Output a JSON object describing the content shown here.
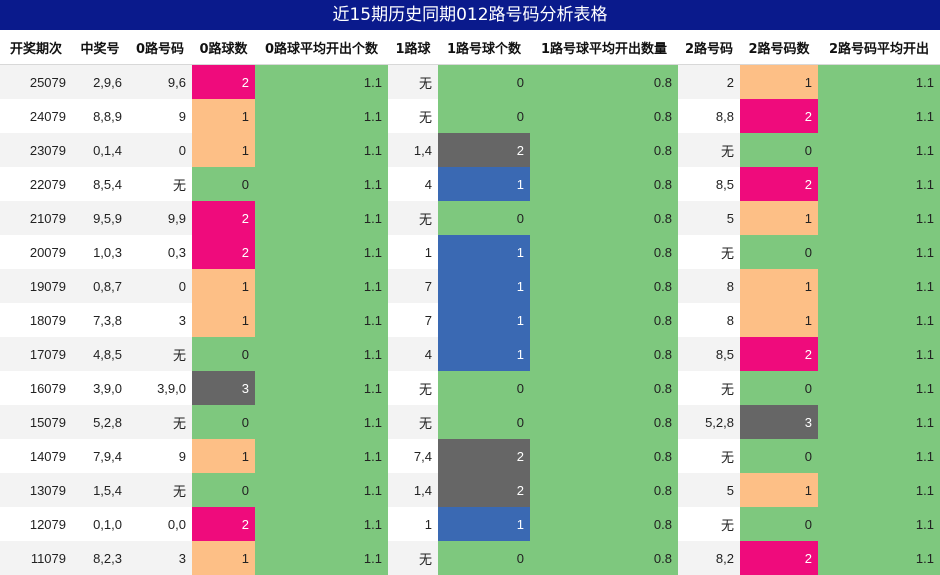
{
  "title": "近15期历史同期012路号码分析表格",
  "headers": [
    "开奖期次",
    "中奖号",
    "0路号码",
    "0路球数",
    "0路球平均开出个数",
    "1路球",
    "1路号球个数",
    "1路号球平均开出数量",
    "2路号码",
    "2路号码数",
    "2路号码平均开出"
  ],
  "colors": {
    "zero": "#7ec87e",
    "one": "#fdbf86",
    "two": "#ef0b7c",
    "three": "#666666",
    "blue": "#3a69b3",
    "title_bg": "#0a1a8c"
  },
  "rows": [
    {
      "period": "25079",
      "number": "2,9,6",
      "r0": "9,6",
      "r0n": "2",
      "r0avg": "1.1",
      "r1": "无",
      "r1n": "0",
      "r1avg": "0.8",
      "r2": "2",
      "r2n": "1",
      "r2avg": "1.1"
    },
    {
      "period": "24079",
      "number": "8,8,9",
      "r0": "9",
      "r0n": "1",
      "r0avg": "1.1",
      "r1": "无",
      "r1n": "0",
      "r1avg": "0.8",
      "r2": "8,8",
      "r2n": "2",
      "r2avg": "1.1"
    },
    {
      "period": "23079",
      "number": "0,1,4",
      "r0": "0",
      "r0n": "1",
      "r0avg": "1.1",
      "r1": "1,4",
      "r1n": "2",
      "r1avg": "0.8",
      "r2": "无",
      "r2n": "0",
      "r2avg": "1.1"
    },
    {
      "period": "22079",
      "number": "8,5,4",
      "r0": "无",
      "r0n": "0",
      "r0avg": "1.1",
      "r1": "4",
      "r1n": "1",
      "r1avg": "0.8",
      "r2": "8,5",
      "r2n": "2",
      "r2avg": "1.1"
    },
    {
      "period": "21079",
      "number": "9,5,9",
      "r0": "9,9",
      "r0n": "2",
      "r0avg": "1.1",
      "r1": "无",
      "r1n": "0",
      "r1avg": "0.8",
      "r2": "5",
      "r2n": "1",
      "r2avg": "1.1"
    },
    {
      "period": "20079",
      "number": "1,0,3",
      "r0": "0,3",
      "r0n": "2",
      "r0avg": "1.1",
      "r1": "1",
      "r1n": "1",
      "r1avg": "0.8",
      "r2": "无",
      "r2n": "0",
      "r2avg": "1.1"
    },
    {
      "period": "19079",
      "number": "0,8,7",
      "r0": "0",
      "r0n": "1",
      "r0avg": "1.1",
      "r1": "7",
      "r1n": "1",
      "r1avg": "0.8",
      "r2": "8",
      "r2n": "1",
      "r2avg": "1.1"
    },
    {
      "period": "18079",
      "number": "7,3,8",
      "r0": "3",
      "r0n": "1",
      "r0avg": "1.1",
      "r1": "7",
      "r1n": "1",
      "r1avg": "0.8",
      "r2": "8",
      "r2n": "1",
      "r2avg": "1.1"
    },
    {
      "period": "17079",
      "number": "4,8,5",
      "r0": "无",
      "r0n": "0",
      "r0avg": "1.1",
      "r1": "4",
      "r1n": "1",
      "r1avg": "0.8",
      "r2": "8,5",
      "r2n": "2",
      "r2avg": "1.1"
    },
    {
      "period": "16079",
      "number": "3,9,0",
      "r0": "3,9,0",
      "r0n": "3",
      "r0avg": "1.1",
      "r1": "无",
      "r1n": "0",
      "r1avg": "0.8",
      "r2": "无",
      "r2n": "0",
      "r2avg": "1.1"
    },
    {
      "period": "15079",
      "number": "5,2,8",
      "r0": "无",
      "r0n": "0",
      "r0avg": "1.1",
      "r1": "无",
      "r1n": "0",
      "r1avg": "0.8",
      "r2": "5,2,8",
      "r2n": "3",
      "r2avg": "1.1"
    },
    {
      "period": "14079",
      "number": "7,9,4",
      "r0": "9",
      "r0n": "1",
      "r0avg": "1.1",
      "r1": "7,4",
      "r1n": "2",
      "r1avg": "0.8",
      "r2": "无",
      "r2n": "0",
      "r2avg": "1.1"
    },
    {
      "period": "13079",
      "number": "1,5,4",
      "r0": "无",
      "r0n": "0",
      "r0avg": "1.1",
      "r1": "1,4",
      "r1n": "2",
      "r1avg": "0.8",
      "r2": "5",
      "r2n": "1",
      "r2avg": "1.1"
    },
    {
      "period": "12079",
      "number": "0,1,0",
      "r0": "0,0",
      "r0n": "2",
      "r0avg": "1.1",
      "r1": "1",
      "r1n": "1",
      "r1avg": "0.8",
      "r2": "无",
      "r2n": "0",
      "r2avg": "1.1"
    },
    {
      "period": "11079",
      "number": "8,2,3",
      "r0": "3",
      "r0n": "1",
      "r0avg": "1.1",
      "r1": "无",
      "r1n": "0",
      "r1avg": "0.8",
      "r2": "8,2",
      "r2n": "2",
      "r2avg": "1.1"
    }
  ]
}
